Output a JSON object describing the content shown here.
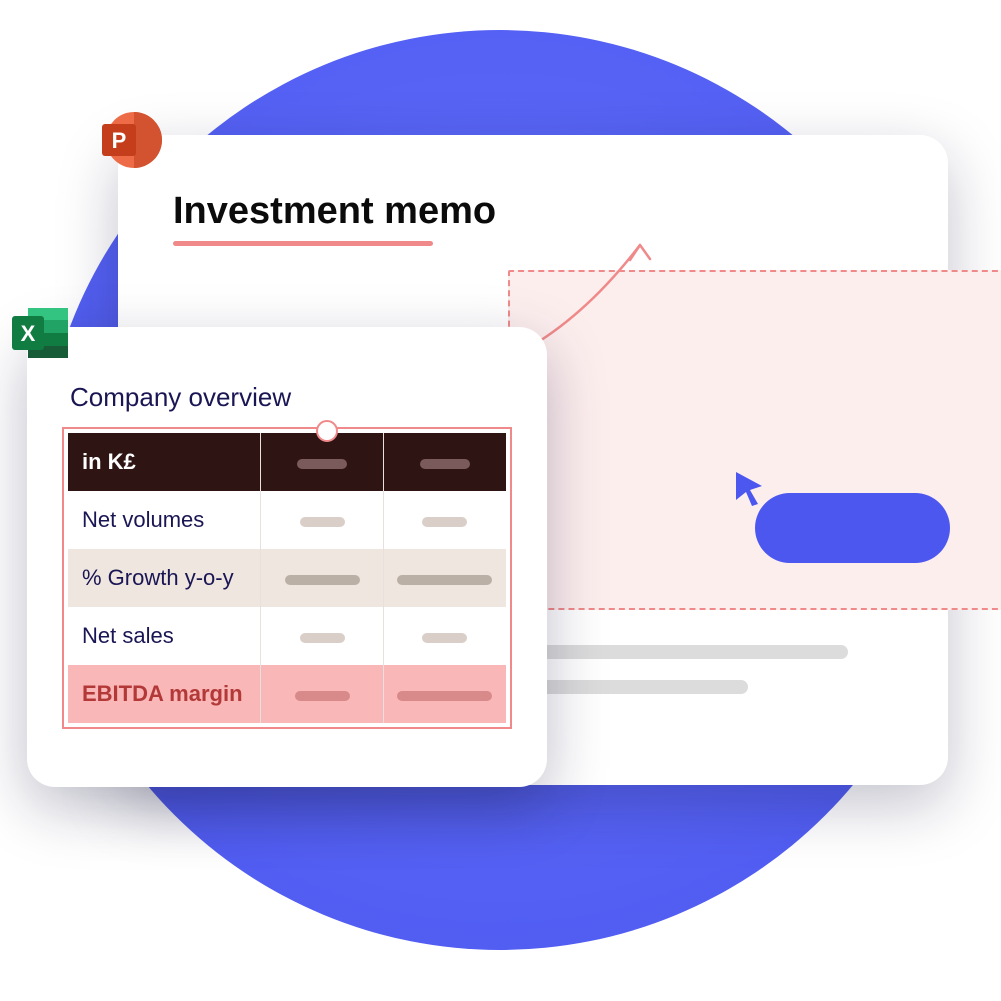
{
  "colors": {
    "circle_bg": "#5865f5",
    "card_bg": "#ffffff",
    "accent_red": "#f08a8a",
    "dropzone_fill": "#fdeeee",
    "text_dark": "#0b0b0b",
    "text_navy": "#1a1654",
    "table_header_bg": "#2f1414",
    "row_alt_bg": "#eee6df",
    "row_highlight_bg": "#f9b7b7",
    "row_highlight_text": "#b33939",
    "placeholder_bar": "#dcdcdc",
    "cursor_blue": "#4c57f0",
    "ppt_orange": "#d24726",
    "excel_green": "#107c41"
  },
  "ppt": {
    "icon_letter": "P",
    "title": "Investment memo"
  },
  "excel": {
    "icon_letter": "X",
    "title": "Company overview",
    "table": {
      "header_label": "in K£",
      "rows": [
        {
          "key": "volumes",
          "label": "Net volumes",
          "bg": "#ffffff",
          "text": "#1a1654",
          "pill1_w": 45,
          "pill2_w": 45,
          "pill_color": "#d9cfc8"
        },
        {
          "key": "growth",
          "label": "% Growth y-o-y",
          "bg": "#eee6df",
          "text": "#1a1654",
          "pill1_w": 75,
          "pill2_w": 95,
          "pill_color": "#bbb0a6"
        },
        {
          "key": "sales",
          "label": "Net sales",
          "bg": "#ffffff",
          "text": "#1a1654",
          "pill1_w": 45,
          "pill2_w": 45,
          "pill_color": "#d9cfc8"
        },
        {
          "key": "ebitda",
          "label": "EBITDA margin",
          "bg": "#f9b7b7",
          "text": "#b33939",
          "pill1_w": 55,
          "pill2_w": 95,
          "pill_color": "#d88a8a"
        }
      ],
      "header_pill_color": "#7a5a5a",
      "header_pill1_w": 50,
      "header_pill2_w": 50
    }
  }
}
